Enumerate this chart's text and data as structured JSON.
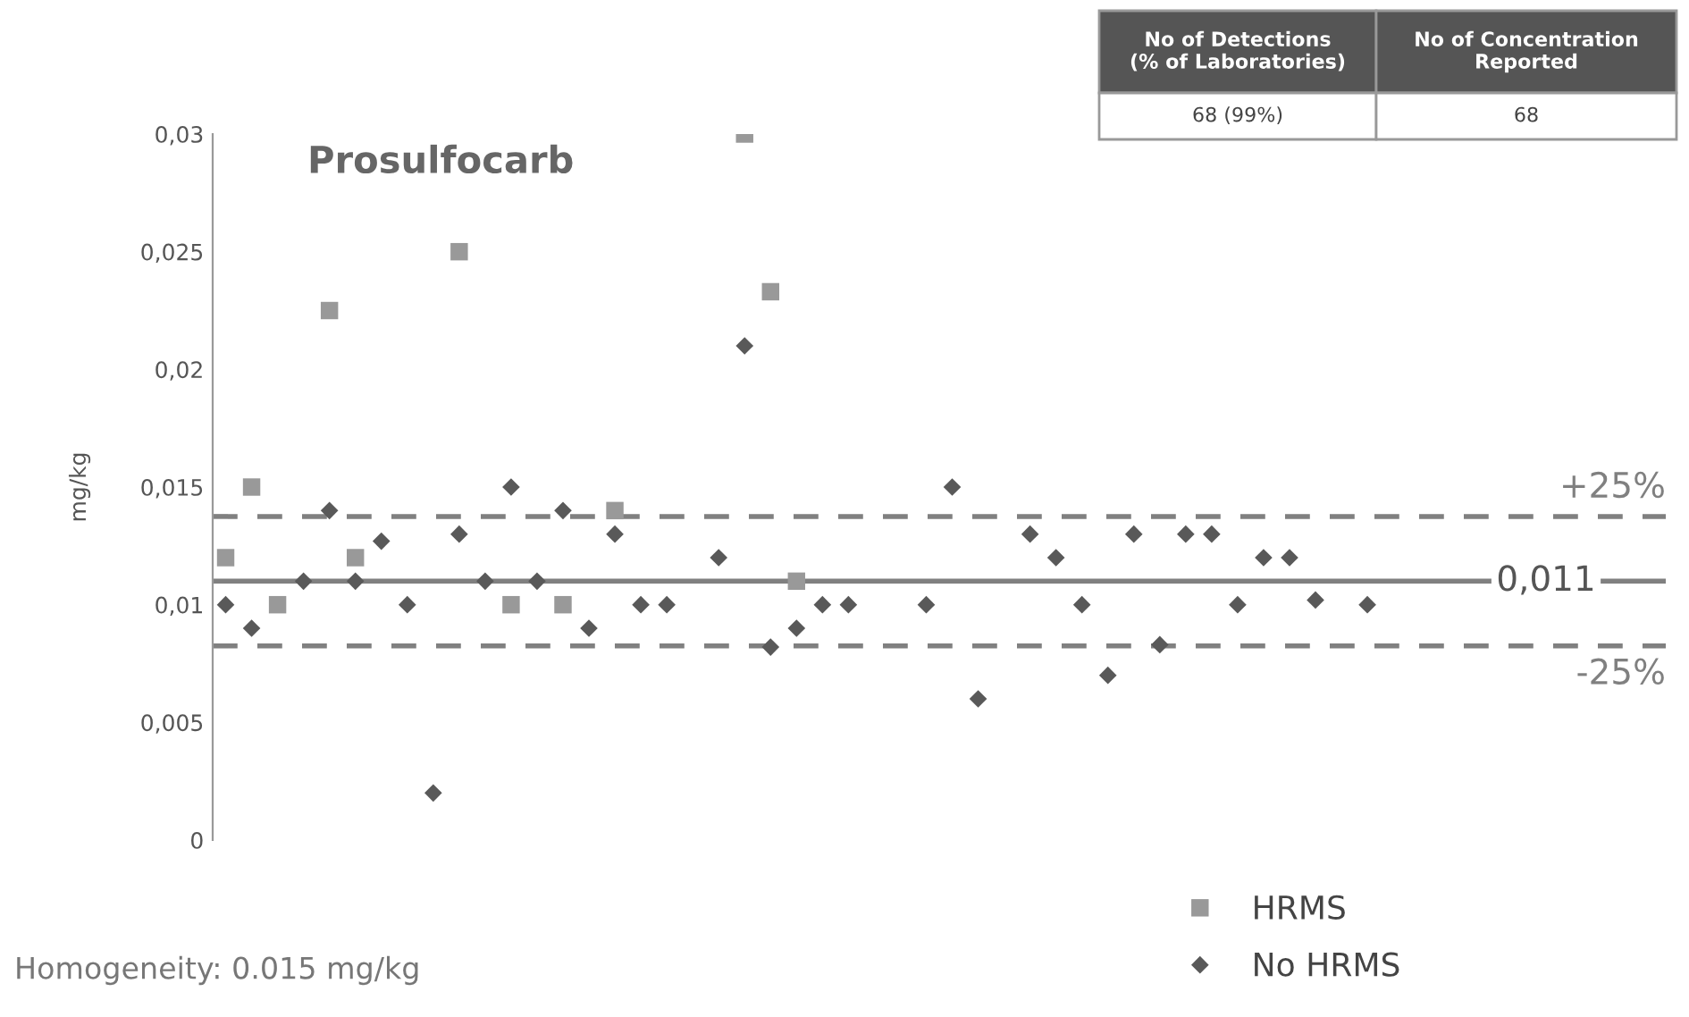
{
  "chart_data": {
    "type": "scatter",
    "title": "Prosulfocarb",
    "ylabel": "mg/kg",
    "categories": [
      null,
      null,
      null,
      null,
      null,
      null,
      null,
      null,
      null,
      null,
      null,
      null,
      null,
      null,
      null,
      null,
      null,
      null,
      null,
      null,
      null,
      null,
      null,
      null,
      null,
      null,
      null,
      null,
      null,
      null,
      null,
      null,
      null,
      null,
      null,
      null,
      null,
      null,
      null,
      null,
      null,
      null,
      null,
      null,
      null,
      null,
      null,
      null,
      null,
      null,
      null,
      null,
      null,
      null,
      null,
      null
    ],
    "series": [
      {
        "name": "HRMS",
        "color": "#999999",
        "marker": "square",
        "values": [
          0.012,
          0.015,
          0.01,
          null,
          0.0225,
          0.012,
          null,
          null,
          null,
          0.025,
          null,
          0.01,
          null,
          0.01,
          null,
          0.014,
          null,
          null,
          null,
          null,
          0.03,
          0.0233,
          0.011,
          null,
          null,
          null,
          null,
          null,
          null,
          null,
          null,
          null,
          null,
          null,
          null,
          null,
          null,
          null,
          null,
          null,
          null,
          null,
          null,
          null,
          null,
          null,
          null,
          null,
          null,
          null,
          null,
          null,
          null,
          null,
          null,
          null
        ]
      },
      {
        "name": "No HRMS",
        "color": "#595959",
        "marker": "diamond",
        "values": [
          0.01,
          0.009,
          null,
          0.011,
          0.014,
          0.011,
          0.0127,
          0.01,
          0.002,
          0.013,
          0.011,
          0.015,
          0.011,
          0.014,
          0.009,
          0.013,
          0.01,
          0.01,
          null,
          0.012,
          0.021,
          0.0082,
          0.009,
          0.01,
          0.01,
          null,
          null,
          0.01,
          0.015,
          0.006,
          null,
          0.013,
          0.012,
          0.01,
          0.007,
          0.013,
          0.0083,
          0.013,
          0.013,
          0.01,
          0.012,
          0.012,
          0.0102,
          null,
          0.01,
          null,
          null,
          null,
          null,
          null,
          null,
          null,
          null,
          null,
          null,
          null
        ]
      }
    ],
    "ylim": [
      0,
      0.03
    ],
    "yticks": [
      {
        "value": 0,
        "label": "0"
      },
      {
        "value": 0.005,
        "label": "0,005"
      },
      {
        "value": 0.01,
        "label": "0,01"
      },
      {
        "value": 0.015,
        "label": "0,015"
      },
      {
        "value": 0.02,
        "label": "0,02"
      },
      {
        "value": 0.025,
        "label": "0,025"
      },
      {
        "value": 0.03,
        "label": "0,03"
      }
    ],
    "ref_lines": [
      {
        "axis": "y",
        "value": 0.011,
        "label": "0,011",
        "color": "#808080",
        "line_style": "solid"
      },
      {
        "axis": "y",
        "value": 0.01375,
        "color": "#808080",
        "line_style": "dashed"
      },
      {
        "axis": "y",
        "value": 0.00825,
        "color": "#808080",
        "line_style": "dashed"
      }
    ],
    "annotations": [
      {
        "text": "+25%",
        "y": 0.01375
      },
      {
        "text": "-25%",
        "y": 0.00825
      },
      "No of Detections\n(% of Laboratories)",
      "No of Concentration\nReported",
      "68 (99%)",
      "68",
      "Homogeneity: 0.015 mg/kg"
    ],
    "legend": "bottom right",
    "grid": false
  }
}
